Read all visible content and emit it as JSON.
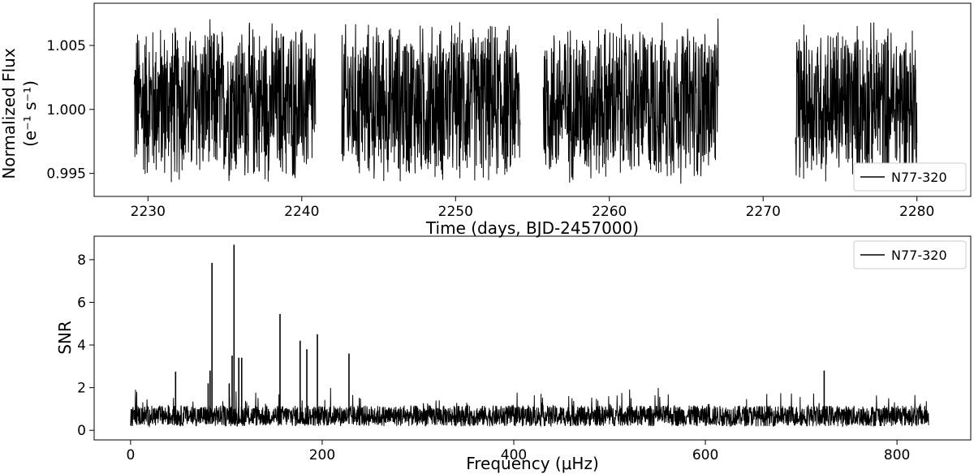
{
  "chart_data": [
    {
      "type": "line",
      "xlabel": "Time (days, BJD-2457000)",
      "ylabel_line1": "Normalized Flux",
      "ylabel_line2": "(e⁻¹ s⁻¹)",
      "xlim": [
        2226.5,
        2283.5
      ],
      "ylim": [
        0.9932,
        1.0083
      ],
      "xticks": [
        2230,
        2240,
        2250,
        2260,
        2270,
        2280
      ],
      "yticks": [
        0.995,
        1.0,
        1.005
      ],
      "ytick_labels": [
        "0.995",
        "1.000",
        "1.005"
      ],
      "legend_position": "lower-right",
      "series": [
        {
          "name": "N77-320",
          "color": "#000000",
          "segments": [
            {
              "x_start": 2229.1,
              "x_end": 2240.9
            },
            {
              "x_start": 2242.6,
              "x_end": 2254.2
            },
            {
              "x_start": 2255.7,
              "x_end": 2267.1
            },
            {
              "x_start": 2272.1,
              "x_end": 2280.0
            }
          ],
          "center": 1.0005,
          "amplitude": 0.0068
        }
      ]
    },
    {
      "type": "line",
      "xlabel": "Frequency (μHz)",
      "ylabel": "SNR",
      "xlim": [
        -38,
        877
      ],
      "ylim": [
        -0.45,
        9.1
      ],
      "xticks": [
        0,
        200,
        400,
        600,
        800
      ],
      "yticks": [
        0,
        2,
        4,
        6,
        8
      ],
      "legend_position": "upper-right",
      "series": [
        {
          "name": "N77-320",
          "color": "#000000",
          "x_range": [
            0,
            833
          ],
          "noise_base": 0.75,
          "peaks": [
            {
              "x": 47,
              "y": 2.75
            },
            {
              "x": 81,
              "y": 2.2
            },
            {
              "x": 83,
              "y": 2.8
            },
            {
              "x": 85,
              "y": 7.85
            },
            {
              "x": 103,
              "y": 2.2
            },
            {
              "x": 106,
              "y": 3.5
            },
            {
              "x": 108,
              "y": 8.7
            },
            {
              "x": 113,
              "y": 3.4
            },
            {
              "x": 116,
              "y": 3.4
            },
            {
              "x": 156,
              "y": 5.45
            },
            {
              "x": 177,
              "y": 4.2
            },
            {
              "x": 184,
              "y": 3.8
            },
            {
              "x": 195,
              "y": 4.5
            },
            {
              "x": 228,
              "y": 3.6
            },
            {
              "x": 724,
              "y": 2.8
            }
          ]
        }
      ]
    }
  ]
}
